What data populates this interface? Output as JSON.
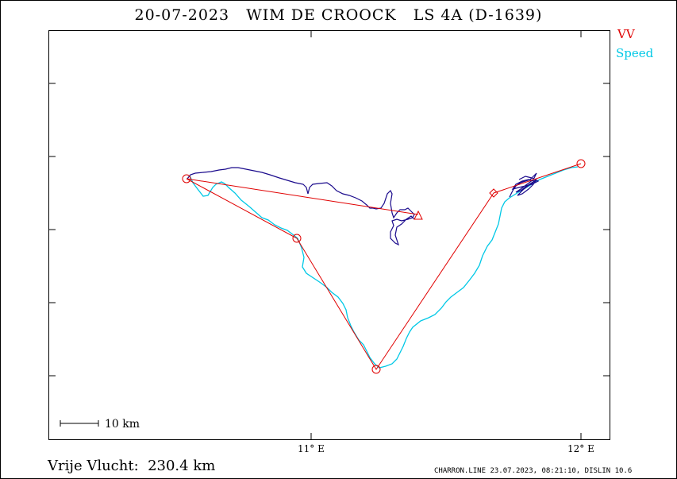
{
  "title": "20-07-2023   WIM DE CROOCK   LS 4A (D-1639)",
  "legend": {
    "vv": {
      "label": "VV",
      "color": "#e00000"
    },
    "speed": {
      "label": "Speed",
      "color": "#00c8e6"
    }
  },
  "track_color": "#1a0a8c",
  "axis": {
    "x_ticks": [
      {
        "label": "11° E"
      },
      {
        "label": "12° E"
      }
    ]
  },
  "scale_bar": {
    "label": "10 km"
  },
  "distance": "Vrije Vlucht:  230.4 km",
  "footer": "CHARRON.LINE 23.07.2023, 08:21:10, DISLIN 10.6"
}
